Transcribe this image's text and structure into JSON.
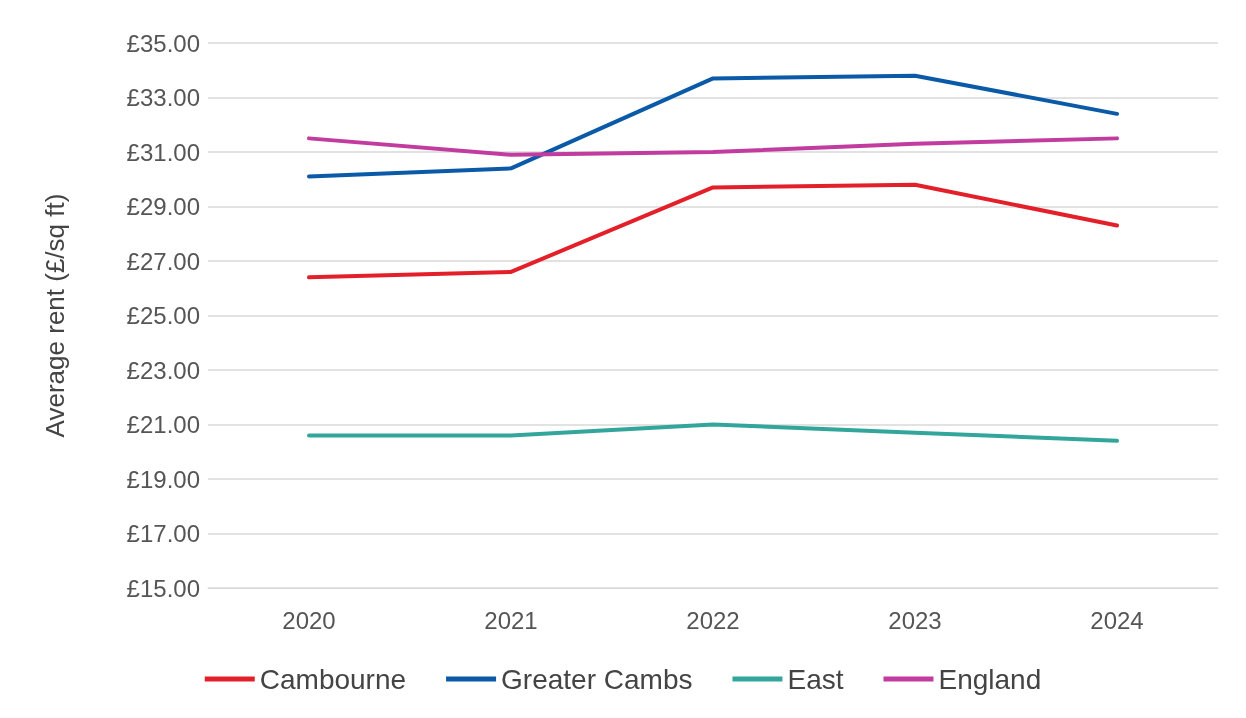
{
  "chart_data": {
    "type": "line",
    "ylabel": "Average rent (£/sq ft)",
    "categories": [
      "2020",
      "2021",
      "2022",
      "2023",
      "2024"
    ],
    "series": [
      {
        "name": "Cambourne",
        "color": "#e3202a",
        "values": [
          26.4,
          26.6,
          29.7,
          29.8,
          28.3
        ]
      },
      {
        "name": "Greater Cambs",
        "color": "#0a5aa8",
        "values": [
          30.1,
          30.4,
          33.7,
          33.8,
          32.4
        ]
      },
      {
        "name": "East",
        "color": "#33a69c",
        "values": [
          20.6,
          20.6,
          21.0,
          20.7,
          20.4
        ]
      },
      {
        "name": "England",
        "color": "#c23b9f",
        "values": [
          31.5,
          30.9,
          31.0,
          31.3,
          31.5
        ]
      }
    ],
    "ylim": [
      15,
      35
    ],
    "yticks": [
      {
        "value": 15,
        "label": "£15.00"
      },
      {
        "value": 17,
        "label": "£17.00"
      },
      {
        "value": 19,
        "label": "£19.00"
      },
      {
        "value": 21,
        "label": "£21.00"
      },
      {
        "value": 23,
        "label": "£23.00"
      },
      {
        "value": 25,
        "label": "£25.00"
      },
      {
        "value": 27,
        "label": "£27.00"
      },
      {
        "value": 29,
        "label": "£29.00"
      },
      {
        "value": 31,
        "label": "£31.00"
      },
      {
        "value": 33,
        "label": "£33.00"
      },
      {
        "value": 35,
        "label": "£35.00"
      }
    ],
    "grid": "y",
    "legend": "bottom",
    "marker": "none",
    "line_style": "solid"
  }
}
